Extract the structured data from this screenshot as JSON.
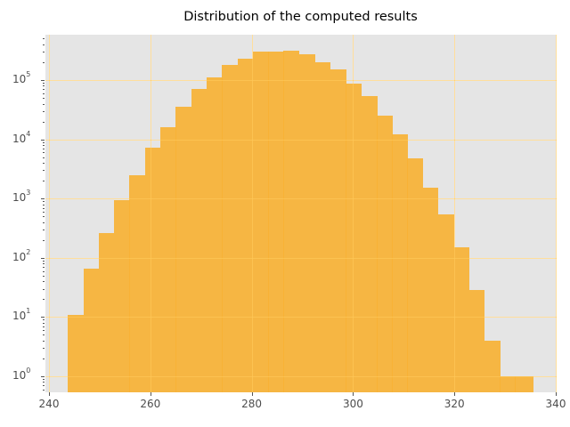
{
  "chart_data": {
    "type": "bar",
    "title": "Distribution of the computed results",
    "xlabel": "",
    "ylabel": "",
    "yscale": "log",
    "grid": true,
    "xlim": [
      240,
      342
    ],
    "ylim": [
      0.55,
      700000
    ],
    "xticks": [
      240,
      260,
      280,
      300,
      320,
      340
    ],
    "yticks": [
      "10^0",
      "10^1",
      "10^2",
      "10^3",
      "10^4",
      "10^5"
    ],
    "bar_color": "#f7b335",
    "background_color": "#e5e5e5",
    "bin_edges": [
      243.7,
      246.8,
      249.8,
      252.8,
      255.9,
      258.9,
      261.9,
      265.0,
      268.1,
      271.1,
      274.1,
      277.2,
      280.2,
      283.3,
      286.3,
      289.3,
      292.5,
      295.5,
      298.6,
      301.6,
      304.7,
      307.7,
      310.7,
      313.8,
      316.8,
      319.9,
      322.9,
      325.9,
      329.0,
      332.0,
      335.6
    ],
    "values": [
      11,
      66,
      260,
      940,
      2500,
      7300,
      16000,
      35000,
      71000,
      110000,
      180000,
      230000,
      300000,
      300000,
      310000,
      270000,
      200000,
      150000,
      86000,
      53000,
      25000,
      12000,
      4700,
      1500,
      540,
      150,
      29,
      4,
      1,
      1
    ]
  }
}
